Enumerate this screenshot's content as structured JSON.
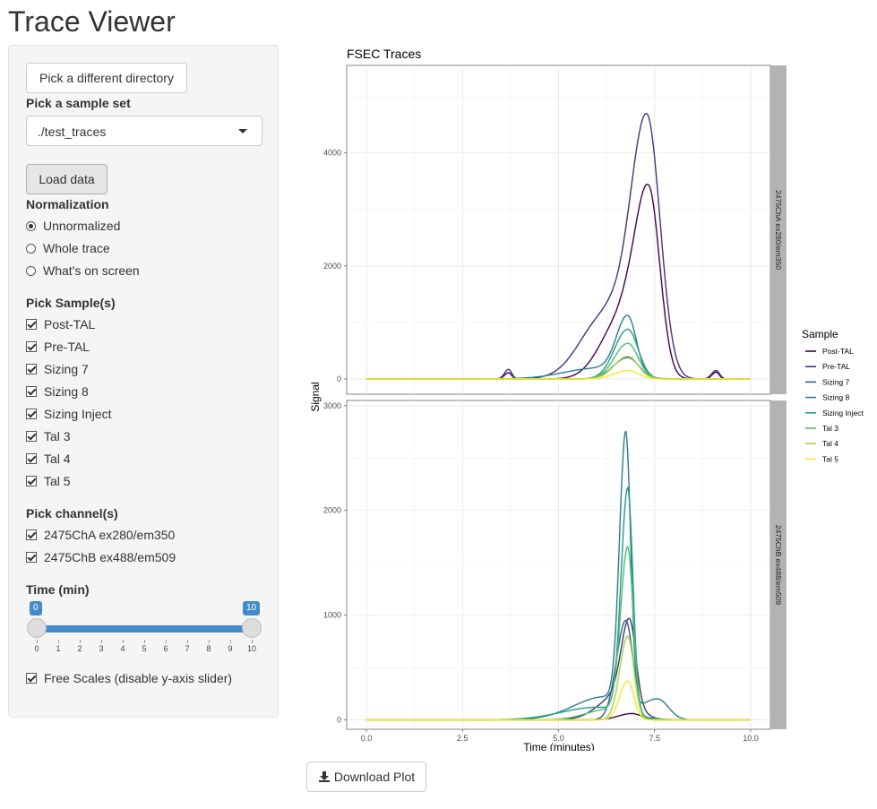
{
  "app": {
    "title": "Trace Viewer"
  },
  "sidebar": {
    "dir_button": "Pick a different directory",
    "sample_set_label": "Pick a sample set",
    "sample_set_value": "./test_traces",
    "load_button": "Load data",
    "normalization_label": "Normalization",
    "normalization_options": [
      {
        "label": "Unnormalized",
        "selected": true
      },
      {
        "label": "Whole trace",
        "selected": false
      },
      {
        "label": "What's on screen",
        "selected": false
      }
    ],
    "samples_label": "Pick Sample(s)",
    "samples": [
      {
        "label": "Post-TAL",
        "checked": true
      },
      {
        "label": "Pre-TAL",
        "checked": true
      },
      {
        "label": "Sizing 7",
        "checked": true
      },
      {
        "label": "Sizing 8",
        "checked": true
      },
      {
        "label": "Sizing Inject",
        "checked": true
      },
      {
        "label": "Tal 3",
        "checked": true
      },
      {
        "label": "Tal 4",
        "checked": true
      },
      {
        "label": "Tal 5",
        "checked": true
      }
    ],
    "channels_label": "Pick channel(s)",
    "channels": [
      {
        "label": "2475ChA ex280/em350",
        "checked": true
      },
      {
        "label": "2475ChB ex488/em509",
        "checked": true
      }
    ],
    "time_label": "Time (min)",
    "time_slider": {
      "min": 0,
      "max": 10,
      "from": 0,
      "to": 10,
      "min_label": "0",
      "max_label": "10",
      "ticks": [
        "0",
        "1",
        "2",
        "3",
        "4",
        "5",
        "6",
        "7",
        "8",
        "9",
        "10"
      ]
    },
    "free_scales": {
      "label": "Free Scales (disable y-axis slider)",
      "checked": true
    }
  },
  "download_button": "Download Plot",
  "colors": {
    "accent": "#428bca"
  },
  "chart_data": {
    "type": "line",
    "title": "FSEC Traces",
    "xlabel": "Time (minutes)",
    "ylabel": "Signal",
    "x_ticks": [
      "0.0",
      "2.5",
      "5.0",
      "7.5",
      "10.0"
    ],
    "xlim": [
      0,
      10
    ],
    "legend_title": "Sample",
    "legend_position": "right",
    "grid": true,
    "series": [
      {
        "name": "Post-TAL",
        "color": "#440154"
      },
      {
        "name": "Pre-TAL",
        "color": "#46327e"
      },
      {
        "name": "Sizing 7",
        "color": "#365c8d"
      },
      {
        "name": "Sizing 8",
        "color": "#277f8e"
      },
      {
        "name": "Sizing Inject",
        "color": "#1fa187"
      },
      {
        "name": "Tal 3",
        "color": "#4ac16d"
      },
      {
        "name": "Tal 4",
        "color": "#a0da39"
      },
      {
        "name": "Tal 5",
        "color": "#fde725"
      }
    ],
    "panels": [
      {
        "strip": "2475ChA ex280/em350",
        "ylim": [
          -270,
          5550
        ],
        "y_ticks": [
          0,
          2000,
          4000
        ],
        "peaks": {
          "Post-TAL": [
            [
              3.7,
              110,
              0.09
            ],
            [
              6.6,
              1000,
              0.45
            ],
            [
              7.35,
              3250,
              0.32
            ],
            [
              9.1,
              120,
              0.09
            ]
          ],
          "Pre-TAL": [
            [
              3.7,
              170,
              0.09
            ],
            [
              6.2,
              1100,
              0.55
            ],
            [
              7.3,
              4600,
              0.38
            ],
            [
              9.1,
              150,
              0.1
            ]
          ],
          "Sizing 7": [
            [
              6.8,
              380,
              0.32
            ]
          ],
          "Sizing 8": [
            [
              6.0,
              190,
              0.75
            ],
            [
              6.8,
              1030,
              0.25
            ]
          ],
          "Sizing Inject": [
            [
              6.8,
              880,
              0.3
            ]
          ],
          "Tal 3": [
            [
              6.8,
              630,
              0.3
            ]
          ],
          "Tal 4": [
            [
              6.8,
              400,
              0.3
            ]
          ],
          "Tal 5": [
            [
              6.8,
              150,
              0.3
            ]
          ]
        }
      },
      {
        "strip": "2475ChB ex488/em509",
        "ylim": [
          -90,
          3050
        ],
        "y_ticks": [
          0,
          1000,
          2000,
          3000
        ],
        "peaks": {
          "Post-TAL": [
            [
              6.9,
              60,
              0.3
            ]
          ],
          "Pre-TAL": [
            [
              6.6,
              250,
              0.45
            ],
            [
              6.85,
              760,
              0.18
            ]
          ],
          "Sizing 7": [
            [
              6.75,
              950,
              0.21
            ]
          ],
          "Sizing 8": [
            [
              6.75,
              2600,
              0.14
            ],
            [
              6.2,
              220,
              0.7
            ],
            [
              7.6,
              180,
              0.3
            ]
          ],
          "Sizing Inject": [
            [
              6.8,
              2150,
              0.15
            ],
            [
              6.0,
              120,
              0.8
            ]
          ],
          "Tal 3": [
            [
              6.8,
              1600,
              0.16
            ],
            [
              6.3,
              100,
              0.5
            ]
          ],
          "Tal 4": [
            [
              6.8,
              800,
              0.18
            ]
          ],
          "Tal 5": [
            [
              6.8,
              370,
              0.18
            ]
          ]
        }
      }
    ]
  }
}
